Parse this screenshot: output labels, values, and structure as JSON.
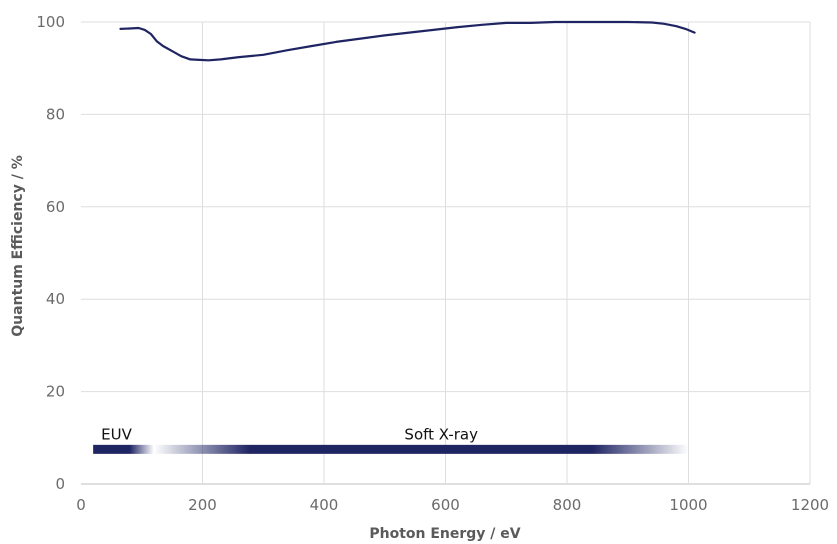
{
  "chart_data": {
    "type": "line",
    "xlabel": "Photon Energy / eV",
    "ylabel": "Quantum Efficiency / %",
    "xlim": [
      0,
      1200
    ],
    "ylim": [
      0,
      100
    ],
    "x_ticks": [
      0,
      200,
      400,
      600,
      800,
      1000,
      1200
    ],
    "y_ticks": [
      0,
      20,
      40,
      60,
      80,
      100
    ],
    "grid": true,
    "line_color": "#1f2463",
    "series": [
      {
        "x": [
          65,
          80,
          95,
          105,
          115,
          125,
          135,
          150,
          165,
          180,
          195,
          210,
          230,
          260,
          300,
          340,
          380,
          420,
          460,
          500,
          540,
          580,
          620,
          660,
          700,
          740,
          780,
          820,
          860,
          900,
          940,
          960,
          980,
          995,
          1010
        ],
        "y": [
          98.5,
          98.6,
          98.7,
          98.3,
          97.4,
          95.8,
          94.8,
          93.7,
          92.6,
          91.9,
          91.8,
          91.7,
          91.9,
          92.4,
          92.9,
          93.9,
          94.8,
          95.7,
          96.4,
          97.1,
          97.7,
          98.3,
          98.9,
          99.4,
          99.8,
          99.8,
          100.0,
          100.0,
          100.0,
          100.0,
          99.9,
          99.6,
          99.1,
          98.5,
          97.7
        ]
      }
    ],
    "bands": [
      {
        "label": "EUV",
        "x_start": 20,
        "x_end": 120,
        "y": 7.5
      },
      {
        "label": "Soft X-ray",
        "x_start": 120,
        "x_end": 1000,
        "y": 7.5
      }
    ]
  }
}
